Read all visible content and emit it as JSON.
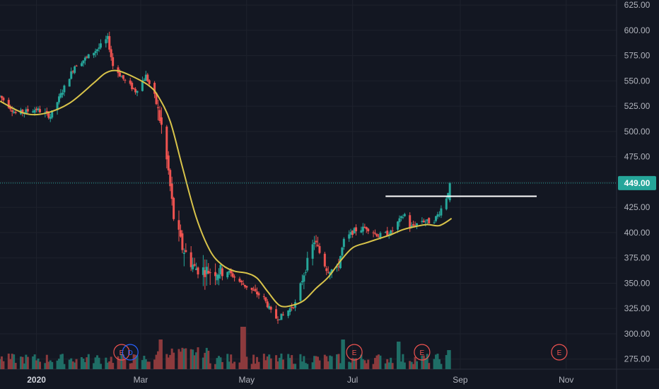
{
  "chart_data": {
    "type": "candlestick",
    "y_axis": {
      "side": "right",
      "range": [
        265,
        630
      ],
      "ticks": [
        275,
        300,
        325,
        350,
        375,
        400,
        425,
        450,
        475,
        500,
        525,
        550,
        575,
        600,
        625
      ],
      "tick_labels": [
        "275.00",
        "300.00",
        "325.00",
        "350.00",
        "375.00",
        "400.00",
        "425.00",
        "450.00",
        "475.00",
        "500.00",
        "525.00",
        "550.00",
        "575.00",
        "600.00",
        "625.00"
      ]
    },
    "x_axis": {
      "range": [
        "2019-12-11",
        "2020-11-30"
      ],
      "ticks": [
        {
          "date": "2020-01-01",
          "label": "2020",
          "year": true
        },
        {
          "date": "2020-03-01",
          "label": "Mar",
          "year": false
        },
        {
          "date": "2020-05-01",
          "label": "May",
          "year": false
        },
        {
          "date": "2020-07-01",
          "label": "Jul",
          "year": false
        },
        {
          "date": "2020-09-01",
          "label": "Sep",
          "year": false
        },
        {
          "date": "2020-11-01",
          "label": "Nov",
          "year": false
        }
      ]
    },
    "last_price": 449.0,
    "last_price_label": "449.00",
    "grid": true,
    "series": [
      {
        "type": "candlestick",
        "up_color": "#26a69a",
        "down_color": "#ef5350",
        "anchors": [
          [
            "2019-12-11",
            535
          ],
          [
            "2019-12-20",
            518
          ],
          [
            "2020-01-01",
            522
          ],
          [
            "2020-01-09",
            515
          ],
          [
            "2020-01-16",
            540
          ],
          [
            "2020-01-23",
            565
          ],
          [
            "2020-01-30",
            573
          ],
          [
            "2020-02-06",
            583
          ],
          [
            "2020-02-11",
            592
          ],
          [
            "2020-02-14",
            565
          ],
          [
            "2020-02-20",
            552
          ],
          [
            "2020-02-27",
            540
          ],
          [
            "2020-03-04",
            555
          ],
          [
            "2020-03-09",
            535
          ],
          [
            "2020-03-13",
            505
          ],
          [
            "2020-03-17",
            460
          ],
          [
            "2020-03-20",
            415
          ],
          [
            "2020-03-25",
            385
          ],
          [
            "2020-04-01",
            365
          ],
          [
            "2020-04-10",
            362
          ],
          [
            "2020-04-20",
            362
          ],
          [
            "2020-04-28",
            350
          ],
          [
            "2020-05-05",
            342
          ],
          [
            "2020-05-11",
            335
          ],
          [
            "2020-05-17",
            315
          ],
          [
            "2020-05-22",
            318
          ],
          [
            "2020-05-29",
            330
          ],
          [
            "2020-06-03",
            360
          ],
          [
            "2020-06-09",
            392
          ],
          [
            "2020-06-16",
            365
          ],
          [
            "2020-06-22",
            362
          ],
          [
            "2020-06-26",
            392
          ],
          [
            "2020-07-02",
            402
          ],
          [
            "2020-07-09",
            405
          ],
          [
            "2020-07-16",
            397
          ],
          [
            "2020-07-23",
            400
          ],
          [
            "2020-07-27",
            410
          ],
          [
            "2020-07-31",
            418
          ],
          [
            "2020-08-03",
            405
          ],
          [
            "2020-08-10",
            412
          ],
          [
            "2020-08-16",
            410
          ],
          [
            "2020-08-20",
            420
          ],
          [
            "2020-08-24",
            435
          ],
          [
            "2020-08-26",
            447
          ]
        ]
      },
      {
        "type": "line",
        "color": "#d8c34a",
        "points": [
          [
            "2019-12-11",
            530
          ],
          [
            "2019-12-25",
            518
          ],
          [
            "2020-01-06",
            518
          ],
          [
            "2020-01-20",
            528
          ],
          [
            "2020-02-03",
            548
          ],
          [
            "2020-02-10",
            558
          ],
          [
            "2020-02-17",
            560
          ],
          [
            "2020-02-27",
            553
          ],
          [
            "2020-03-06",
            545
          ],
          [
            "2020-03-11",
            535
          ],
          [
            "2020-03-18",
            510
          ],
          [
            "2020-03-25",
            465
          ],
          [
            "2020-04-02",
            415
          ],
          [
            "2020-04-10",
            382
          ],
          [
            "2020-04-17",
            368
          ],
          [
            "2020-04-24",
            362
          ],
          [
            "2020-05-01",
            360
          ],
          [
            "2020-05-07",
            355
          ],
          [
            "2020-05-13",
            342
          ],
          [
            "2020-05-20",
            328
          ],
          [
            "2020-05-27",
            328
          ],
          [
            "2020-06-03",
            333
          ],
          [
            "2020-06-10",
            345
          ],
          [
            "2020-06-17",
            356
          ],
          [
            "2020-06-24",
            372
          ],
          [
            "2020-07-01",
            385
          ],
          [
            "2020-07-09",
            390
          ],
          [
            "2020-07-16",
            394
          ],
          [
            "2020-07-23",
            398
          ],
          [
            "2020-07-30",
            403
          ],
          [
            "2020-08-06",
            406
          ],
          [
            "2020-08-13",
            408
          ],
          [
            "2020-08-20",
            407
          ],
          [
            "2020-08-27",
            414
          ]
        ]
      }
    ],
    "annotations": [
      {
        "type": "horizontal_line",
        "value": 436,
        "from": "2020-07-20",
        "to": "2020-10-15",
        "color": "#ffffff"
      }
    ],
    "events": [
      {
        "date": "2020-02-19",
        "label": "E",
        "color": "#ef5350"
      },
      {
        "date": "2020-02-24",
        "label": "D",
        "color": "#2962ff"
      },
      {
        "date": "2020-07-02",
        "label": "E",
        "color": "#ef5350"
      },
      {
        "date": "2020-08-10",
        "label": "E",
        "color": "#ef5350"
      },
      {
        "date": "2020-10-28",
        "label": "E",
        "color": "#ef5350"
      }
    ],
    "volume": {
      "up_color": "#1f6e66",
      "down_color": "#8c3a3d",
      "spikes": [
        {
          "date": "2020-04-29",
          "level": 1.0
        },
        {
          "date": "2020-03-13",
          "level": 0.55
        },
        {
          "date": "2020-06-26",
          "level": 0.7
        },
        {
          "date": "2020-07-27",
          "level": 0.65
        },
        {
          "date": "2020-08-26",
          "level": 0.45
        }
      ]
    }
  }
}
